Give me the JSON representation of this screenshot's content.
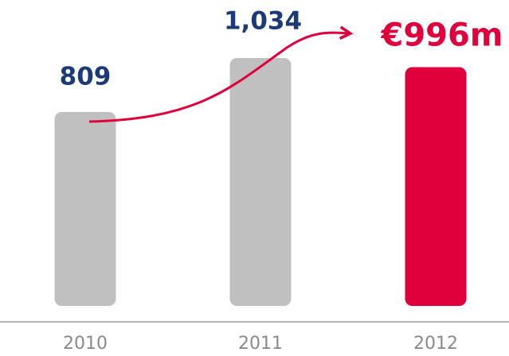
{
  "chart_data": {
    "type": "bar",
    "categories": [
      "2010",
      "2011",
      "2012"
    ],
    "values": [
      809,
      1034,
      996
    ],
    "value_labels": [
      "809",
      "1,034",
      "€996m"
    ],
    "colors": [
      "#c0c0c0",
      "#c0c0c0",
      "#e0003c"
    ],
    "label_colors": [
      "#1b3a78",
      "#1b3a78",
      "#e0003c"
    ]
  }
}
